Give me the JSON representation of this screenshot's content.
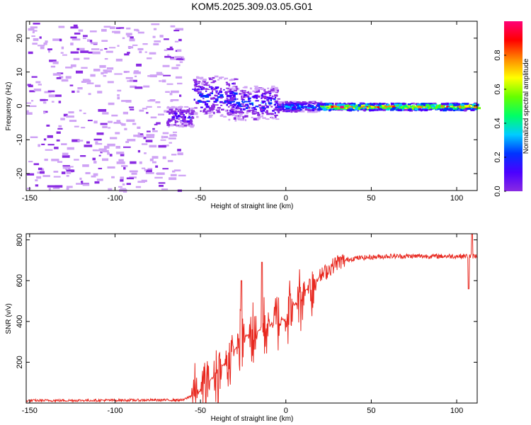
{
  "title": "KOM5.2025.309.03.05.G01",
  "chart_data": [
    {
      "type": "heatmap",
      "name": "spectrogram",
      "xlabel": "Height of straight line (km)",
      "ylabel": "Frequency (Hz)",
      "xlim": [
        -152,
        112
      ],
      "ylim": [
        -25,
        25
      ],
      "xticks": [
        "-150",
        "-100",
        "-50",
        "0",
        "50",
        "100"
      ],
      "yticks": [
        "-20",
        "-10",
        "0",
        "10",
        "20"
      ],
      "colorbar": {
        "label": "Normalized spectral amplitude",
        "range": [
          0,
          1
        ],
        "ticks": [
          "0.0",
          "0.2",
          "0.4",
          "0.6",
          "0.8"
        ],
        "colors": [
          "#ffffff",
          "#cfa3f5",
          "#8a2be2",
          "#4b00ff",
          "#0033ff",
          "#00ccff",
          "#00ff66",
          "#66ff00",
          "#ffff00",
          "#ff8800",
          "#ff0000",
          "#ff0077"
        ]
      },
      "noise_region": {
        "x": [
          -152,
          -62
        ],
        "freq": [
          -25,
          25
        ],
        "amplitude": 0.08
      },
      "features": [
        {
          "x": [
            -70,
            -55
          ],
          "freq_center": -3,
          "freq_width": 3,
          "amplitude": 0.3
        },
        {
          "x": [
            -55,
            -30
          ],
          "freq_center": 3,
          "freq_width": 6,
          "amplitude": 0.35
        },
        {
          "x": [
            -35,
            -5
          ],
          "freq_center": 1,
          "freq_width": 5,
          "amplitude": 0.35
        },
        {
          "x": [
            -5,
            20
          ],
          "freq_center": 0,
          "freq_width": 1.5,
          "amplitude": 0.45
        },
        {
          "x": [
            20,
            112
          ],
          "freq_center": 0,
          "freq_width": 1.0,
          "amplitude": 0.85
        }
      ]
    },
    {
      "type": "line",
      "name": "snr",
      "xlabel": "Height of straight line (km)",
      "ylabel": "SNR (v/v)",
      "xlim": [
        -152,
        112
      ],
      "ylim": [
        0,
        830
      ],
      "xticks": [
        "-150",
        "-100",
        "-50",
        "0",
        "50",
        "100"
      ],
      "yticks": [
        "200",
        "400",
        "600",
        "800"
      ],
      "color": "#e8281f",
      "control_points": [
        {
          "x": -152,
          "y": 12
        },
        {
          "x": -60,
          "y": 15
        },
        {
          "x": -50,
          "y": 60
        },
        {
          "x": -35,
          "y": 200
        },
        {
          "x": -25,
          "y": 320
        },
        {
          "x": -10,
          "y": 380
        },
        {
          "x": 0,
          "y": 420
        },
        {
          "x": 10,
          "y": 540
        },
        {
          "x": 20,
          "y": 620
        },
        {
          "x": 30,
          "y": 690
        },
        {
          "x": 40,
          "y": 710
        },
        {
          "x": 60,
          "y": 720
        },
        {
          "x": 112,
          "y": 720
        }
      ],
      "spikes": [
        {
          "x": -26,
          "y": 600
        },
        {
          "x": -14,
          "y": 690
        },
        {
          "x": 107,
          "y": 560
        },
        {
          "x": 109,
          "y": 830
        }
      ]
    }
  ]
}
